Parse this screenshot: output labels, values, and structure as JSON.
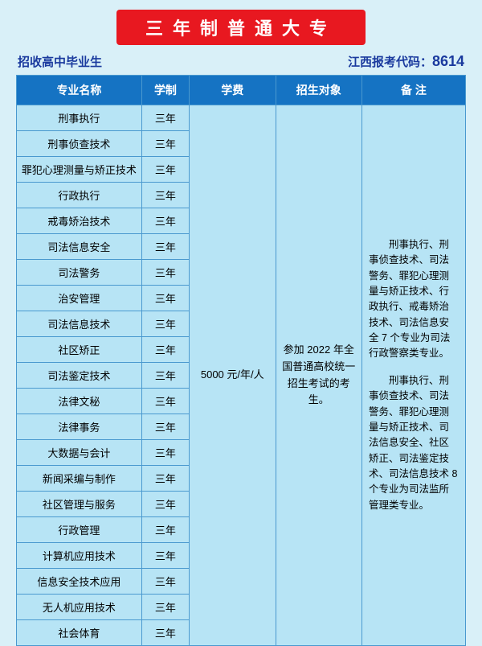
{
  "title": "三年制普通大专",
  "subtitle_left": "招收高中毕业生",
  "subtitle_right_label": "江西报考代码：",
  "subtitle_right_code": "8614",
  "table": {
    "headers": [
      "专业名称",
      "学制",
      "学费",
      "招生对象",
      "备 注"
    ],
    "fee": "5000 元/年/人",
    "target": "参加 2022 年全国普通高校统一招生考试的考生。",
    "note_p1": "刑事执行、刑事侦查技术、司法警务、罪犯心理测量与矫正技术、行政执行、戒毒矫治技术、司法信息安全 7 个专业为司法行政警察类专业。",
    "note_p2": "刑事执行、刑事侦查技术、司法警务、罪犯心理测量与矫正技术、司法信息安全、社区矫正、司法鉴定技术、司法信息技术 8 个专业为司法监所管理类专业。",
    "rows": [
      {
        "name": "刑事执行",
        "dur": "三年"
      },
      {
        "name": "刑事侦查技术",
        "dur": "三年"
      },
      {
        "name": "罪犯心理测量与矫正技术",
        "dur": "三年"
      },
      {
        "name": "行政执行",
        "dur": "三年"
      },
      {
        "name": "戒毒矫治技术",
        "dur": "三年"
      },
      {
        "name": "司法信息安全",
        "dur": "三年"
      },
      {
        "name": "司法警务",
        "dur": "三年"
      },
      {
        "name": "治安管理",
        "dur": "三年"
      },
      {
        "name": "司法信息技术",
        "dur": "三年"
      },
      {
        "name": "社区矫正",
        "dur": "三年"
      },
      {
        "name": "司法鉴定技术",
        "dur": "三年"
      },
      {
        "name": "法律文秘",
        "dur": "三年"
      },
      {
        "name": "法律事务",
        "dur": "三年"
      },
      {
        "name": "大数据与会计",
        "dur": "三年"
      },
      {
        "name": "新闻采编与制作",
        "dur": "三年"
      },
      {
        "name": "社区管理与服务",
        "dur": "三年"
      },
      {
        "name": "行政管理",
        "dur": "三年"
      },
      {
        "name": "计算机应用技术",
        "dur": "三年"
      },
      {
        "name": "信息安全技术应用",
        "dur": "三年"
      },
      {
        "name": "无人机应用技术",
        "dur": "三年"
      },
      {
        "name": "社会体育",
        "dur": "三年"
      }
    ]
  },
  "colors": {
    "page_bg": "#d9f0f8",
    "title_bg": "#e81820",
    "title_fg": "#ffffff",
    "subtitle_fg": "#1a3a9e",
    "th_bg": "#1573c3",
    "th_fg": "#ffffff",
    "td_bg": "#b7e4f5",
    "border": "#4a99cf"
  }
}
